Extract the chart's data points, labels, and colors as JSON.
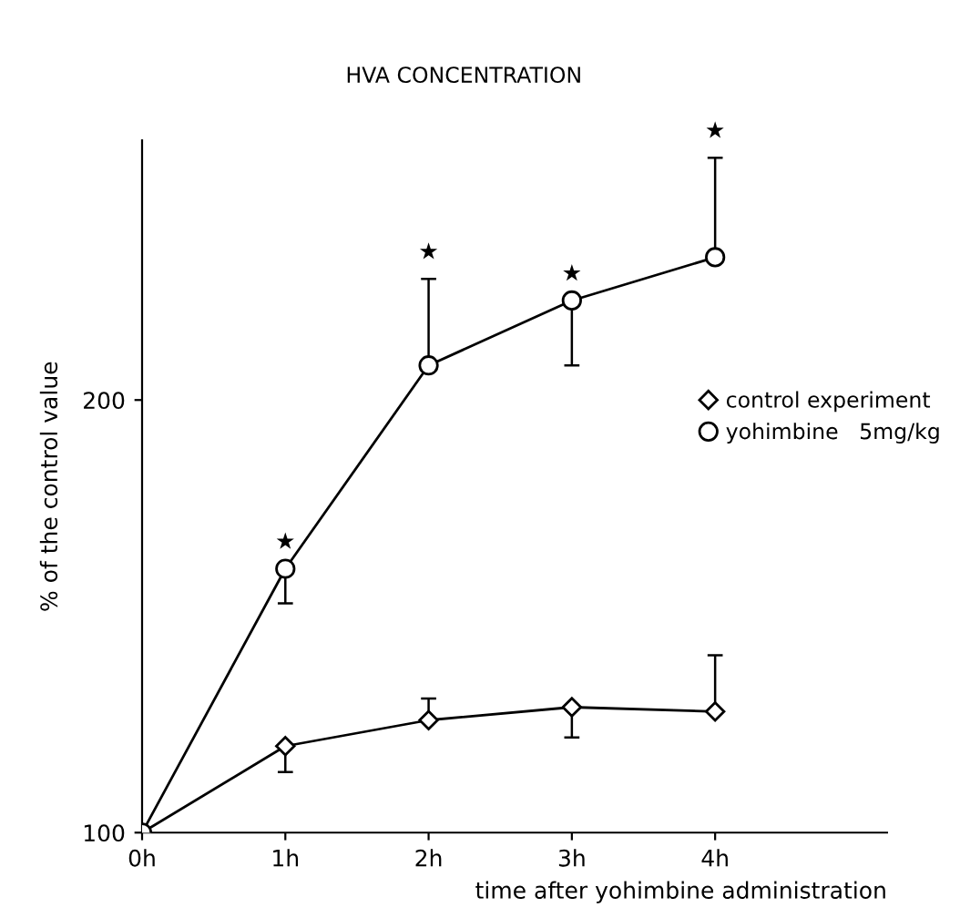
{
  "chart_data": {
    "type": "line",
    "title": "HVA CONCENTRATION",
    "xlabel": "time after yohimbine administration",
    "ylabel": "% of the control value",
    "x": [
      0,
      1,
      2,
      3,
      4
    ],
    "series": [
      {
        "name": "control experiment",
        "color": "#000000",
        "marker": "diamond",
        "values": [
          100,
          120,
          126,
          129,
          128
        ],
        "errors": [
          null,
          [
            114,
            120
          ],
          [
            126,
            131
          ],
          [
            122,
            129
          ],
          [
            128,
            141
          ]
        ]
      },
      {
        "name": "yohimbine   5mg/kg",
        "color": "#000000",
        "marker": "circle",
        "values": [
          100,
          161,
          208,
          223,
          233
        ],
        "errors": [
          null,
          [
            153,
            161
          ],
          [
            208,
            228
          ],
          [
            208,
            223
          ],
          [
            233,
            256
          ]
        ]
      }
    ],
    "annotations": [
      {
        "text": "★",
        "x": 1,
        "y": 161
      },
      {
        "text": "★",
        "x": 2,
        "y": 228
      },
      {
        "text": "★",
        "x": 3,
        "y": 223
      },
      {
        "text": "★",
        "x": 4,
        "y": 256
      }
    ],
    "xlim": [
      0,
      5.2
    ],
    "ylim": [
      100,
      260
    ],
    "xticks": [
      {
        "value": 0,
        "label": "0h"
      },
      {
        "value": 1,
        "label": "1h"
      },
      {
        "value": 2,
        "label": "2h"
      },
      {
        "value": 3,
        "label": "3h"
      },
      {
        "value": 4,
        "label": "4h"
      }
    ],
    "yticks": [
      100,
      200
    ],
    "legend": "right",
    "grid": false,
    "line_style": "solid"
  }
}
